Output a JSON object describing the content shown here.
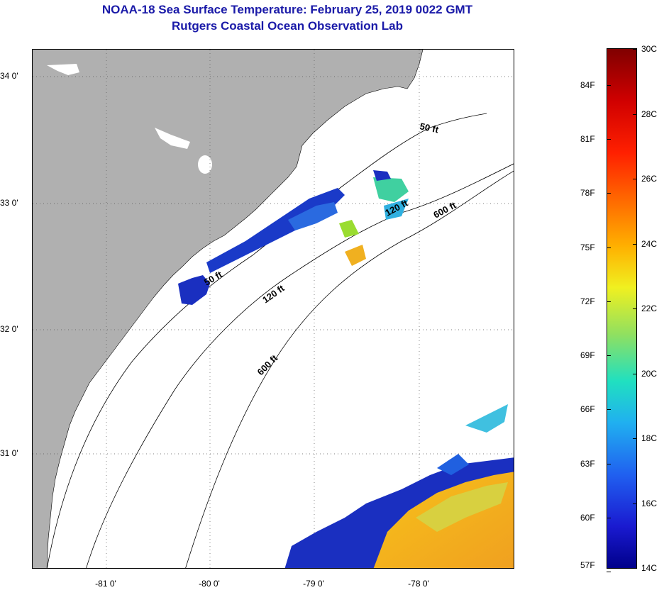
{
  "title": {
    "line1": "NOAA-18 Sea Surface Temperature:  February 25, 2019 0022 GMT",
    "line2": "Rutgers Coastal Ocean Observation Lab"
  },
  "map": {
    "lon_ticks": [
      "-81 0'",
      "-80 0'",
      "-79 0'",
      "-78 0'"
    ],
    "lat_ticks": [
      "34 0'",
      "33 0'",
      "32 0'",
      "31 0'"
    ],
    "contour_labels": [
      "50 ft",
      "120 ft",
      "600 ft",
      "50 ft",
      "120 ft",
      "600 ft"
    ],
    "colors": {
      "land": "#b0b0b0",
      "ocean": "#ffffff",
      "contour": "#000000"
    }
  },
  "colorbar": {
    "fahrenheit": [
      "84F",
      "81F",
      "78F",
      "75F",
      "72F",
      "69F",
      "66F",
      "63F",
      "60F",
      "57F"
    ],
    "celsius": [
      "30C",
      "28C",
      "26C",
      "24C",
      "22C",
      "20C",
      "18C",
      "16C",
      "14C"
    ],
    "range_c": [
      14,
      30
    ]
  }
}
